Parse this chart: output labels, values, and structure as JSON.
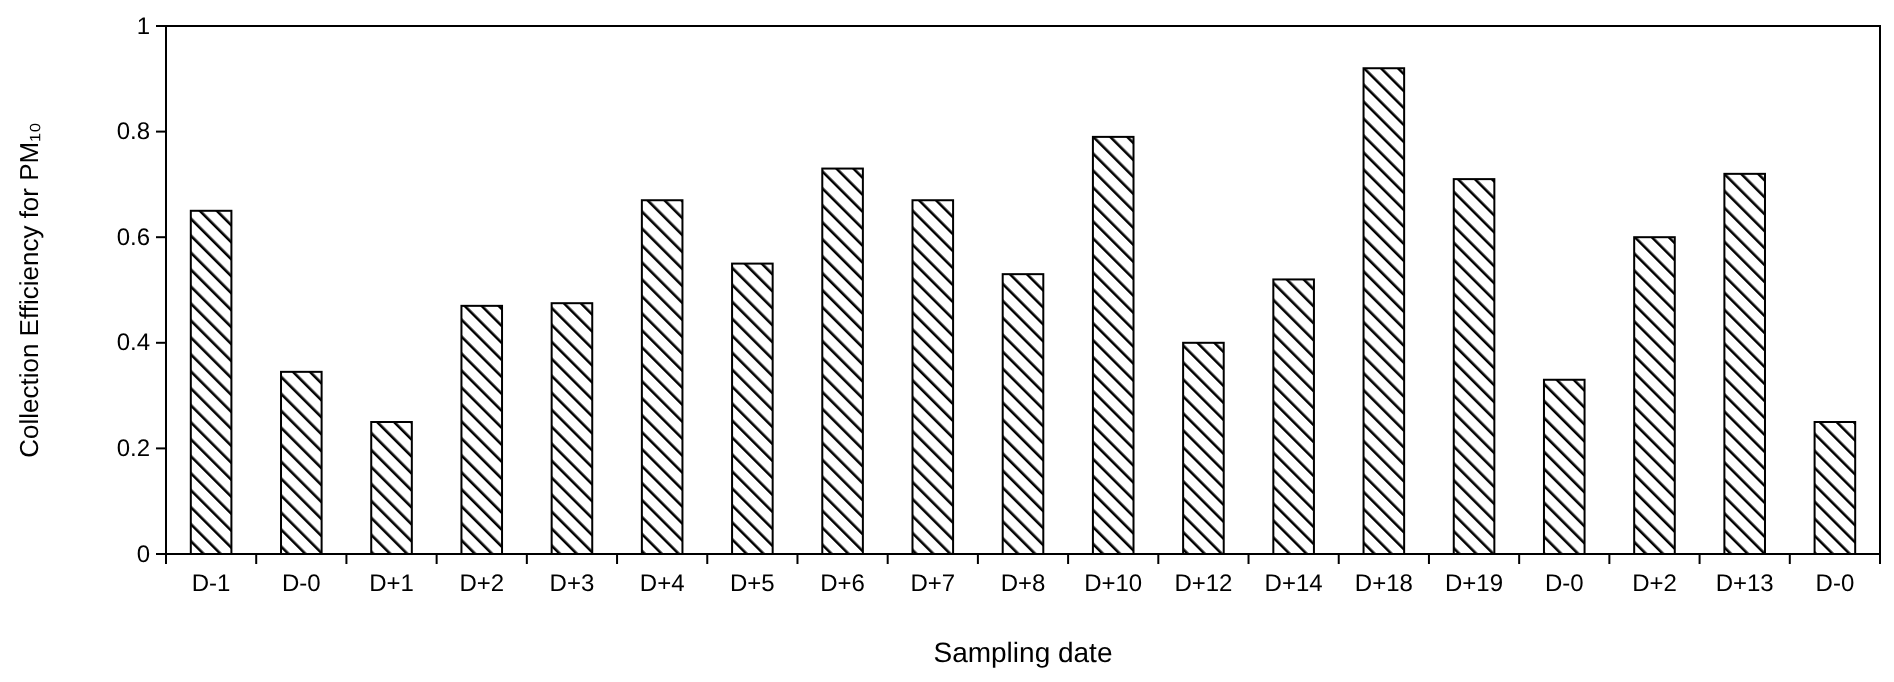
{
  "chart_data": {
    "type": "bar",
    "xlabel": "Sampling date",
    "ylabel": "Collection Efficiency for PM₁₀",
    "categories": [
      "D-1",
      "D-0",
      "D+1",
      "D+2",
      "D+3",
      "D+4",
      "D+5",
      "D+6",
      "D+7",
      "D+8",
      "D+10",
      "D+12",
      "D+14",
      "D+18",
      "D+19",
      "D-0",
      "D+2",
      "D+13",
      "D-0"
    ],
    "values": [
      0.65,
      0.345,
      0.25,
      0.47,
      0.475,
      0.67,
      0.55,
      0.73,
      0.67,
      0.53,
      0.79,
      0.4,
      0.52,
      0.92,
      0.71,
      0.33,
      0.6,
      0.72,
      0.25
    ],
    "color": "#000000",
    "ylim": [
      0,
      1
    ],
    "yticks": [
      0,
      0.2,
      0.4,
      0.6,
      0.8,
      1
    ]
  }
}
